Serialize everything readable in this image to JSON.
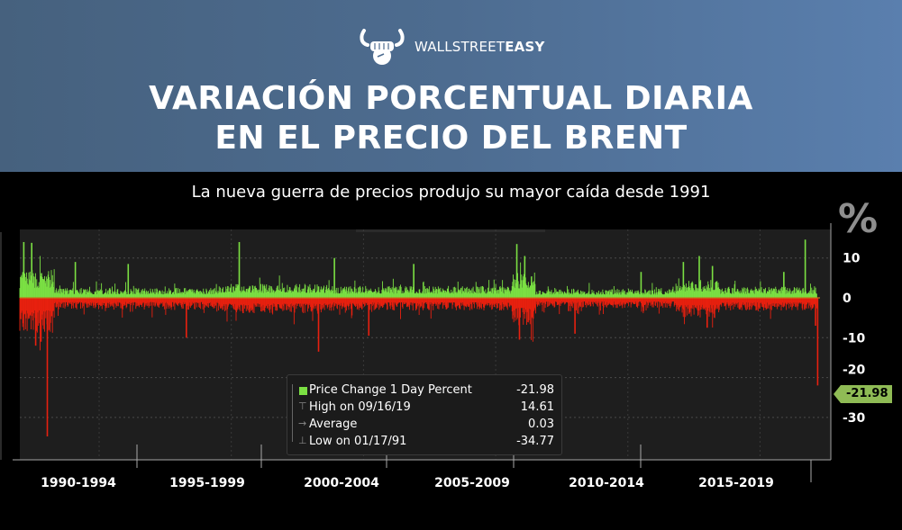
{
  "brand": {
    "name_light": "WALLSTREET",
    "name_bold": "EASY",
    "logo_icon": "bull-fist-icon"
  },
  "header": {
    "title_line1": "VARIACIÓN PORCENTUAL DIARIA",
    "title_line2": "EN EL PRECIO DEL BRENT"
  },
  "subtitle": "La nueva guerra de precios produjo su mayor caída desde 1991",
  "colors": {
    "positive": "#7be043",
    "negative": "#e8200f",
    "plot_bg": "#1e1e1e",
    "tag_bg": "#8fbb55",
    "header_start": "#46617e",
    "header_end": "#5a7fae"
  },
  "chart_data": {
    "type": "bar",
    "title": "Variación porcentual diaria en el precio del Brent",
    "ylabel": "%",
    "unit_label": "%",
    "ylim": [
      -40,
      15
    ],
    "yticks": [
      10,
      0,
      -10,
      -20,
      -30
    ],
    "x_range": [
      1990,
      2020.2
    ],
    "grid": true,
    "periods": [
      "1990-1994",
      "1995-1999",
      "2000-2004",
      "2005-2009",
      "2010-2014",
      "2015-2019"
    ],
    "period_boundaries": [
      1990,
      1995,
      2000,
      2005,
      2010,
      2015,
      2020
    ],
    "legend": {
      "placement": "bottom-center",
      "entries": [
        {
          "label": "Price Change 1 Day Percent",
          "value": "-21.98"
        },
        {
          "label": "High on 09/16/19",
          "value": "14.61"
        },
        {
          "label": "Average",
          "value": "0.03"
        },
        {
          "label": "Low on 01/17/91",
          "value": "-34.77"
        }
      ]
    },
    "last_value": -21.98,
    "last_value_label": "-21.98",
    "high": {
      "date": "09/16/19",
      "value": 14.61
    },
    "low": {
      "date": "01/17/91",
      "value": -34.77
    },
    "average": 0.03,
    "volatility_regimes": [
      {
        "from": 1990.0,
        "to": 1991.3,
        "typical_up": 7,
        "typical_down": -9
      },
      {
        "from": 1991.3,
        "to": 1997.5,
        "typical_up": 2.5,
        "typical_down": -3
      },
      {
        "from": 1997.5,
        "to": 2001.8,
        "typical_up": 3.5,
        "typical_down": -4
      },
      {
        "from": 2001.8,
        "to": 2008.6,
        "typical_up": 3,
        "typical_down": -3.2
      },
      {
        "from": 2008.6,
        "to": 2009.5,
        "typical_up": 6.5,
        "typical_down": -7
      },
      {
        "from": 2009.5,
        "to": 2014.8,
        "typical_up": 2.3,
        "typical_down": -2.6
      },
      {
        "from": 2014.8,
        "to": 2016.5,
        "typical_up": 4.5,
        "typical_down": -5
      },
      {
        "from": 2016.5,
        "to": 2020.2,
        "typical_up": 2.8,
        "typical_down": -3.2
      }
    ],
    "notable_points": [
      {
        "x": 1990.15,
        "value": 14.0
      },
      {
        "x": 1990.45,
        "value": 13.8
      },
      {
        "x": 1990.6,
        "value": -12
      },
      {
        "x": 1990.8,
        "value": -11
      },
      {
        "x": 1991.04,
        "value": -34.77
      },
      {
        "x": 1992.1,
        "value": 9
      },
      {
        "x": 1994.1,
        "value": 8.5
      },
      {
        "x": 1996.3,
        "value": -10
      },
      {
        "x": 1998.3,
        "value": 14.0
      },
      {
        "x": 2001.3,
        "value": -13.5
      },
      {
        "x": 2001.9,
        "value": 10
      },
      {
        "x": 2003.2,
        "value": -9.5
      },
      {
        "x": 2004.9,
        "value": 8.5
      },
      {
        "x": 2008.8,
        "value": 13.5
      },
      {
        "x": 2008.9,
        "value": -10.5
      },
      {
        "x": 2009.1,
        "value": 10.5
      },
      {
        "x": 2011.0,
        "value": -9
      },
      {
        "x": 2013.5,
        "value": 6.5
      },
      {
        "x": 2015.1,
        "value": 9
      },
      {
        "x": 2015.7,
        "value": 10.5
      },
      {
        "x": 2016.2,
        "value": 8
      },
      {
        "x": 2016.0,
        "value": -7.5
      },
      {
        "x": 2018.9,
        "value": 6.5
      },
      {
        "x": 2019.71,
        "value": 14.61
      },
      {
        "x": 2020.1,
        "value": -7
      },
      {
        "x": 2020.18,
        "value": -21.98
      }
    ]
  }
}
